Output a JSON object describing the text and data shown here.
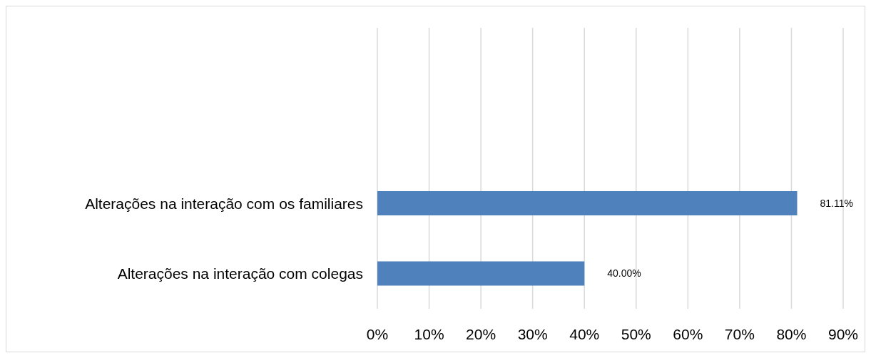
{
  "chart_data": {
    "type": "bar",
    "orientation": "horizontal",
    "categories": [
      null,
      null,
      "Alterações na interação com os familiares",
      "Alterações na interação com colegas"
    ],
    "values": [
      null,
      null,
      81.11,
      40.0
    ],
    "value_labels": [
      null,
      null,
      "81.11%",
      "40.00%"
    ],
    "color": "#4f81bd",
    "xlim": [
      0,
      90
    ],
    "xticks": [
      {
        "value": 0,
        "label": "0%"
      },
      {
        "value": 10,
        "label": "10%"
      },
      {
        "value": 20,
        "label": "20%"
      },
      {
        "value": 30,
        "label": "30%"
      },
      {
        "value": 40,
        "label": "40%"
      },
      {
        "value": 50,
        "label": "50%"
      },
      {
        "value": 60,
        "label": "60%"
      },
      {
        "value": 70,
        "label": "70%"
      },
      {
        "value": 80,
        "label": "80%"
      },
      {
        "value": 90,
        "label": "90%"
      }
    ],
    "grid": "x"
  }
}
